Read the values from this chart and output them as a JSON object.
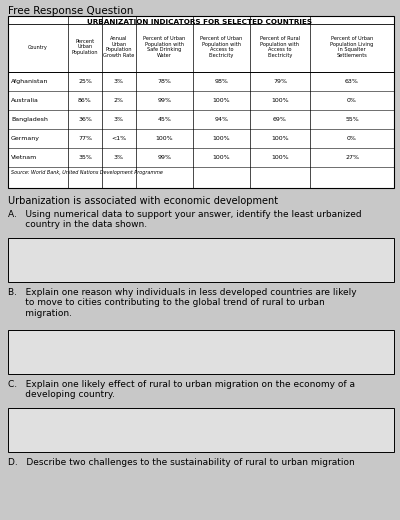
{
  "title": "Free Response Question",
  "table_title": "URBANIZATION INDICATORS FOR SELECTED COUNTRIES",
  "col_headers": [
    "Country",
    "Percent\nUrban\nPopulation",
    "Annual\nUrban\nPopulation\nGrowth Rate",
    "Percent of Urban\nPopulation with\nSafe Drinking\nWater",
    "Percent of Urban\nPopulation with\nAccess to\nElectricity",
    "Percent of Rural\nPopulation with\nAccess to\nElectricity",
    "Percent of Urban\nPopulation Living\nin Squalter\nSettlements"
  ],
  "rows": [
    [
      "Afghanistan",
      "25%",
      "3%",
      "78%",
      "98%",
      "79%",
      "63%"
    ],
    [
      "Australia",
      "86%",
      "2%",
      "99%",
      "100%",
      "100%",
      "0%"
    ],
    [
      "Bangladesh",
      "36%",
      "3%",
      "45%",
      "94%",
      "69%",
      "55%"
    ],
    [
      "Germany",
      "77%",
      "<1%",
      "100%",
      "100%",
      "100%",
      "0%"
    ],
    [
      "Vietnam",
      "35%",
      "3%",
      "99%",
      "100%",
      "100%",
      "27%"
    ]
  ],
  "source": "Source: World Bank, United Nations Development Programme",
  "intro": "Urbanization is associated with economic development",
  "question_A": "A.   Using numerical data to support your answer, identify the least urbanized\n      country in the data shown.",
  "question_B": "B.   Explain one reason why individuals in less developed countries are likely\n      to move to cities contributing to the global trend of rural to urban\n      migration.",
  "question_C": "C.   Explain one likely effect of rural to urban migration on the economy of a\n      developing country.",
  "question_D": "D.   Describe two challenges to the sustainability of rural to urban migration",
  "bg_color": "#c8c8c8",
  "box_bg_color": "#d8d8d8",
  "box_color": "#e0e0e0",
  "table_bg": "#ffffff",
  "border_color": "#000000",
  "text_color": "#000000"
}
